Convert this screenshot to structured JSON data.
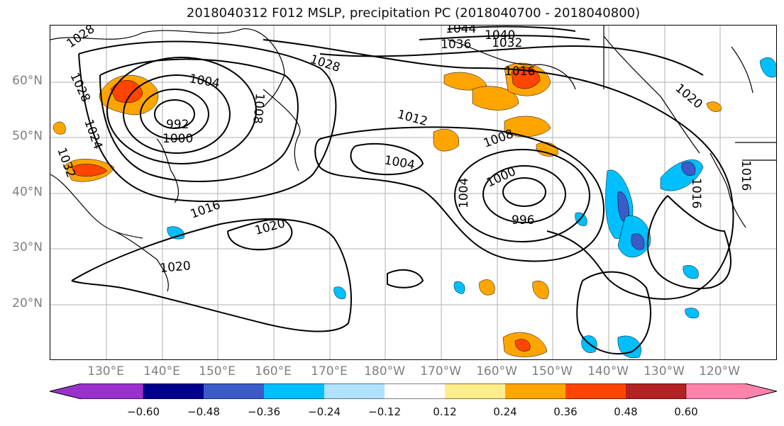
{
  "title": "2018040312 F012 MSLP, precipitation PC (2018040700 - 2018040800)",
  "colors": {
    "levels": [
      "#9932cc",
      "#00008b",
      "#3a5bc8",
      "#00bfff",
      "#b0e2ff",
      "#ffffff",
      "#ffec8b",
      "#ffa500",
      "#ff4500",
      "#b22222",
      "#ff82ab"
    ],
    "contour": "#000000",
    "grid": "#b0b0b0",
    "axis_label": "#7f7f7f"
  },
  "map": {
    "lat_labels": [
      "60°N",
      "50°N",
      "40°N",
      "30°N",
      "20°N"
    ],
    "lon_labels": [
      "130°E",
      "140°E",
      "150°E",
      "160°E",
      "170°E",
      "180°W",
      "170°W",
      "160°W",
      "150°W",
      "140°W",
      "130°W",
      "120°W"
    ],
    "contour_labels": [
      "1028",
      "1044",
      "1040",
      "1036",
      "1032",
      "1028",
      "1028",
      "1004",
      "1008",
      "992",
      "1000",
      "1024",
      "1032",
      "1016",
      "1012",
      "1008",
      "1004",
      "1004",
      "1000",
      "996",
      "1016",
      "1020",
      "1020",
      "1020",
      "1016",
      "1016"
    ]
  },
  "colorbar": {
    "ticks": [
      "−0.60",
      "−0.48",
      "−0.36",
      "−0.24",
      "−0.12",
      "0.12",
      "0.24",
      "0.36",
      "0.48",
      "0.60"
    ]
  }
}
